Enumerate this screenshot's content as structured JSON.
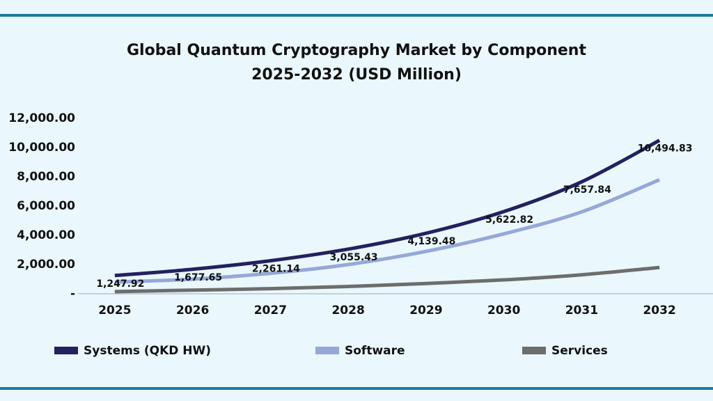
{
  "chart_data": {
    "type": "line",
    "title": "Global Quantum Cryptography Market by Component",
    "subtitle": "2025-2032 (USD Million)",
    "categories": [
      "2025",
      "2026",
      "2027",
      "2028",
      "2029",
      "2030",
      "2031",
      "2032"
    ],
    "series": [
      {
        "name": "Systems (QKD HW)",
        "color": "#23215e",
        "values": [
          1247.92,
          1677.65,
          2261.14,
          3055.43,
          4139.48,
          5622.82,
          7657.84,
          10494.83
        ],
        "value_labels": [
          "1,247.92",
          "1,677.65",
          "2,261.14",
          "3,055.43",
          "4,139.48",
          "5,622.82",
          "7,657.84",
          "10,494.83"
        ]
      },
      {
        "name": "Software",
        "color": "#95a8d8",
        "values": [
          800,
          1000,
          1400,
          2000,
          2900,
          4100,
          5600,
          7800
        ]
      },
      {
        "name": "Services",
        "color": "#6d6d6d",
        "values": [
          150,
          250,
          350,
          500,
          700,
          950,
          1300,
          1800
        ]
      }
    ],
    "ylim": [
      0,
      12000
    ],
    "yticks": [
      {
        "value": 0,
        "label": "-"
      },
      {
        "value": 2000,
        "label": "2,000.00"
      },
      {
        "value": 4000,
        "label": "4,000.00"
      },
      {
        "value": 6000,
        "label": "6,000.00"
      },
      {
        "value": 8000,
        "label": "8,000.00"
      },
      {
        "value": 10000,
        "label": "10,000.00"
      },
      {
        "value": 12000,
        "label": "12,000.00"
      }
    ],
    "grid": false,
    "legend": "bottom"
  }
}
